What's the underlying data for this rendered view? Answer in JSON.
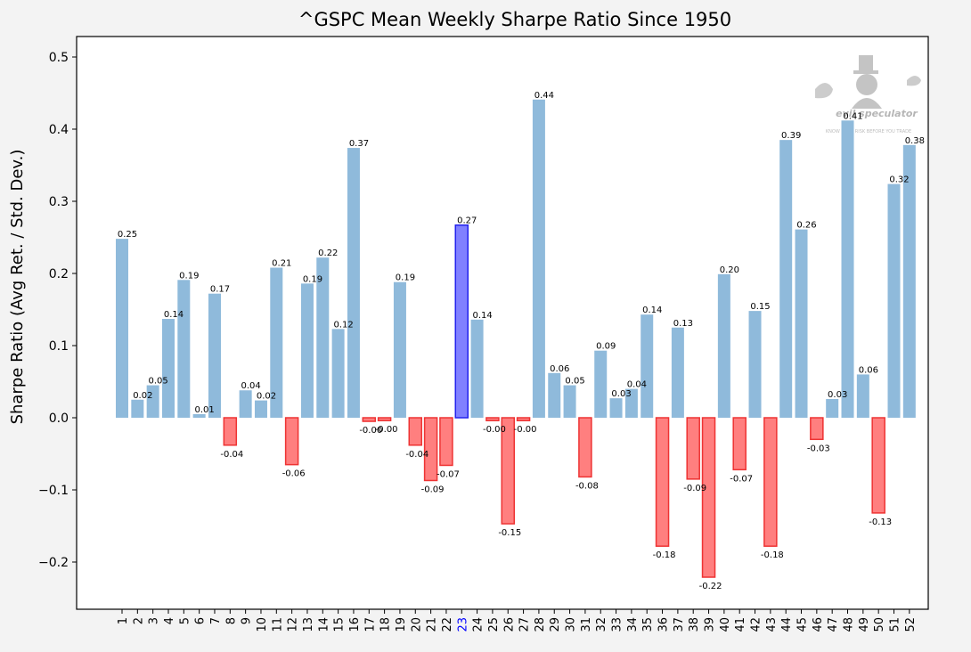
{
  "chart_data": {
    "type": "bar",
    "title": "^GSPC Mean Weekly Sharpe Ratio Since 1950",
    "xlabel": "",
    "ylabel": "Sharpe Ratio (Avg Ret. / Std. Dev.)",
    "ylim": [
      -0.26,
      0.53
    ],
    "yticks": [
      -0.2,
      -0.1,
      0.0,
      0.1,
      0.2,
      0.3,
      0.4,
      0.5
    ],
    "ytick_labels": [
      "−0.2",
      "−0.1",
      "0.0",
      "0.1",
      "0.2",
      "0.3",
      "0.4",
      "0.5"
    ],
    "grid": false,
    "categories": [
      "1",
      "2",
      "3",
      "4",
      "5",
      "6",
      "7",
      "8",
      "9",
      "10",
      "11",
      "12",
      "13",
      "14",
      "15",
      "16",
      "17",
      "18",
      "19",
      "20",
      "21",
      "22",
      "23",
      "24",
      "25",
      "26",
      "27",
      "28",
      "29",
      "30",
      "31",
      "32",
      "33",
      "34",
      "35",
      "36",
      "37",
      "38",
      "39",
      "40",
      "41",
      "42",
      "43",
      "44",
      "45",
      "46",
      "47",
      "48",
      "49",
      "50",
      "51",
      "52"
    ],
    "values": [
      0.248,
      0.025,
      0.045,
      0.137,
      0.191,
      0.005,
      0.172,
      -0.038,
      0.038,
      0.024,
      0.208,
      -0.065,
      0.186,
      0.222,
      0.123,
      0.374,
      -0.005,
      -0.004,
      0.188,
      -0.038,
      -0.087,
      -0.066,
      0.267,
      0.136,
      -0.004,
      -0.147,
      -0.004,
      0.441,
      0.062,
      0.045,
      -0.082,
      0.093,
      0.027,
      0.04,
      0.143,
      -0.178,
      0.125,
      -0.085,
      -0.221,
      0.199,
      -0.072,
      0.148,
      -0.178,
      0.385,
      0.261,
      -0.03,
      0.026,
      0.412,
      0.06,
      -0.132,
      0.324,
      0.378
    ],
    "labels": [
      "0.25",
      "0.02",
      "0.05",
      "0.14",
      "0.19",
      "0.01",
      "0.17",
      "-0.04",
      "0.04",
      "0.02",
      "0.21",
      "-0.06",
      "0.19",
      "0.22",
      "0.12",
      "0.37",
      "-0.00",
      "-0.00",
      "0.19",
      "-0.04",
      "-0.09",
      "-0.07",
      "0.27",
      "0.14",
      "-0.00",
      "-0.15",
      "-0.00",
      "0.44",
      "0.06",
      "0.05",
      "-0.08",
      "0.09",
      "0.03",
      "0.04",
      "0.14",
      "-0.18",
      "0.13",
      "-0.09",
      "-0.22",
      "0.20",
      "-0.07",
      "0.15",
      "-0.18",
      "0.39",
      "0.26",
      "-0.03",
      "0.03",
      "0.41",
      "0.06",
      "-0.13",
      "0.32",
      "0.38"
    ],
    "highlight_category": "23",
    "colors": {
      "positive": "#8fbadb",
      "negative_fill": "#ff7f7f",
      "negative_edge": "#ee3333",
      "highlight_fill": "#8080ff",
      "highlight_edge": "#2222ee",
      "highlight_tick": "#0000ff"
    }
  },
  "watermark": {
    "brand": "evil speculator",
    "tagline": "KNOW YOUR RISK BEFORE YOU TRADE"
  }
}
